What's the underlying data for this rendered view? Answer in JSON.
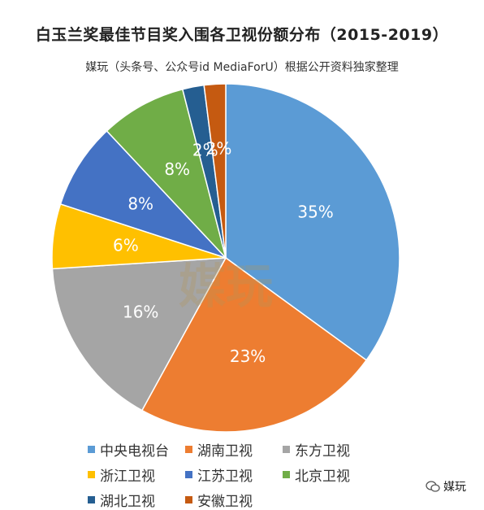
{
  "title": "白玉兰奖最佳节目奖入围各卫视份额分布（2015-2019）",
  "subtitle": "媒玩（头条号、公众号id MediaForU）根据公开资料独家整理",
  "watermark": "媒玩",
  "brand": {
    "label": "媒玩",
    "icon": "chat-bubble-icon"
  },
  "chart_data": {
    "type": "pie",
    "start_angle_deg": 0,
    "direction": "clockwise",
    "slices": [
      {
        "name": "中央电视台",
        "value": 35,
        "label": "35%",
        "color": "#5b9bd5"
      },
      {
        "name": "湖南卫视",
        "value": 23,
        "label": "23%",
        "color": "#ed7d31"
      },
      {
        "name": "东方卫视",
        "value": 16,
        "label": "16%",
        "color": "#a5a5a5"
      },
      {
        "name": "浙江卫视",
        "value": 6,
        "label": "6%",
        "color": "#ffc000"
      },
      {
        "name": "江苏卫视",
        "value": 8,
        "label": "8%",
        "color": "#4472c4"
      },
      {
        "name": "北京卫视",
        "value": 8,
        "label": "8%",
        "color": "#70ad47"
      },
      {
        "name": "湖北卫视",
        "value": 2,
        "label": "2%",
        "color": "#255e91"
      },
      {
        "name": "安徽卫视",
        "value": 2,
        "label": "2%",
        "color": "#c55a11"
      }
    ],
    "legend_position": "bottom"
  }
}
